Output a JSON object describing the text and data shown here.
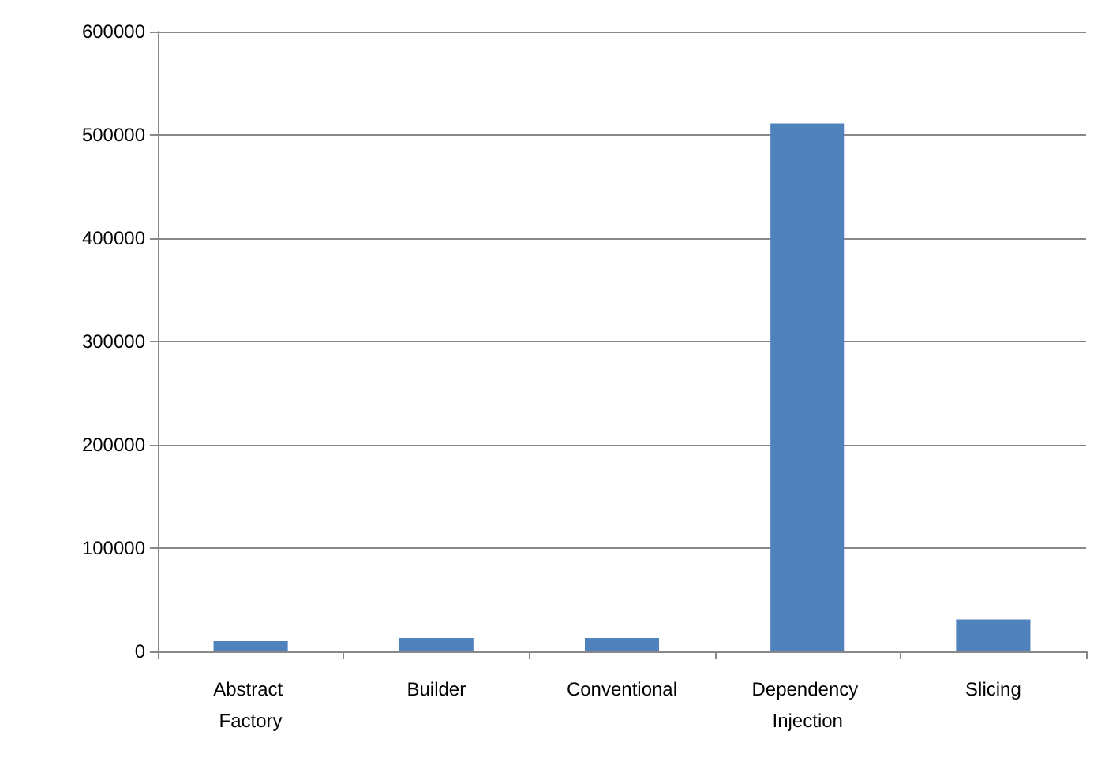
{
  "chart_data": {
    "type": "bar",
    "categories": [
      "Abstract Factory",
      "Builder",
      "Conventional",
      "Dependency Injection",
      "Slicing"
    ],
    "values": [
      10000,
      13000,
      13000,
      511000,
      31000
    ],
    "color": "#4f81bd",
    "ylim": [
      0,
      600000
    ],
    "yticks": [
      0,
      100000,
      200000,
      300000,
      400000,
      500000,
      600000
    ],
    "grid": "y"
  }
}
